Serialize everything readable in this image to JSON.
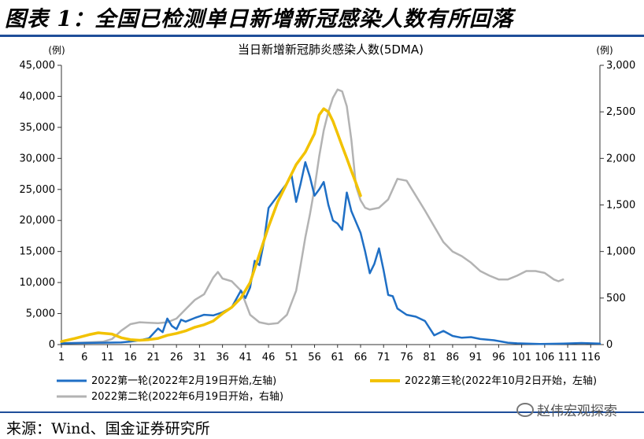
{
  "figure": {
    "title": "图表 1：全国已检测单日新增新冠感染人数有所回落",
    "source": "来源：Wind、国金证券研究所",
    "watermark": "赵伟宏观探索",
    "watermark_icon": "wechat-icon"
  },
  "chart_data": {
    "type": "line",
    "title": "当日新增新冠肺炎感染人数(5DMA)",
    "ylabel_left_unit": "(例)",
    "ylabel_right_unit": "(例)",
    "xlim": [
      1,
      118
    ],
    "x_ticks": [
      "1",
      "6",
      "11",
      "16",
      "21",
      "26",
      "31",
      "36",
      "41",
      "46",
      "51",
      "56",
      "61",
      "66",
      "71",
      "76",
      "81",
      "86",
      "91",
      "96",
      "101",
      "106",
      "111",
      "116"
    ],
    "y_left": {
      "min": 0,
      "max": 45000,
      "ticks": [
        "0",
        "5,000",
        "10,000",
        "15,000",
        "20,000",
        "25,000",
        "30,000",
        "35,000",
        "40,000",
        "45,000"
      ]
    },
    "y_right": {
      "min": 0,
      "max": 3000,
      "ticks": [
        "0",
        "500",
        "1,000",
        "1,500",
        "2,000",
        "2,500",
        "3,000"
      ]
    },
    "grid": false,
    "legend_position": "bottom",
    "series": [
      {
        "name": "2022第一轮(2022年2月19日开始,左轴)",
        "axis": "left",
        "color": "#1f6fc5",
        "points": [
          [
            1,
            200
          ],
          [
            5,
            250
          ],
          [
            10,
            300
          ],
          [
            14,
            350
          ],
          [
            16,
            500
          ],
          [
            18,
            700
          ],
          [
            20,
            1000
          ],
          [
            21,
            1800
          ],
          [
            22,
            2600
          ],
          [
            23,
            2000
          ],
          [
            24,
            4200
          ],
          [
            25,
            3000
          ],
          [
            26,
            2500
          ],
          [
            27,
            4000
          ],
          [
            28,
            3700
          ],
          [
            30,
            4300
          ],
          [
            32,
            4800
          ],
          [
            34,
            4700
          ],
          [
            36,
            5200
          ],
          [
            38,
            6000
          ],
          [
            40,
            8700
          ],
          [
            41,
            7500
          ],
          [
            42,
            9200
          ],
          [
            43,
            13500
          ],
          [
            44,
            12800
          ],
          [
            45,
            16500
          ],
          [
            46,
            22000
          ],
          [
            48,
            24000
          ],
          [
            50,
            26000
          ],
          [
            51,
            27300
          ],
          [
            52,
            23000
          ],
          [
            53,
            26000
          ],
          [
            54,
            29400
          ],
          [
            55,
            27000
          ],
          [
            56,
            24000
          ],
          [
            57,
            25000
          ],
          [
            58,
            26200
          ],
          [
            59,
            22500
          ],
          [
            60,
            20000
          ],
          [
            61,
            19500
          ],
          [
            62,
            18500
          ],
          [
            63,
            24500
          ],
          [
            64,
            21500
          ],
          [
            66,
            18000
          ],
          [
            67,
            15000
          ],
          [
            68,
            11500
          ],
          [
            69,
            13000
          ],
          [
            70,
            15500
          ],
          [
            71,
            12000
          ],
          [
            72,
            8000
          ],
          [
            73,
            7800
          ],
          [
            74,
            5800
          ],
          [
            76,
            4800
          ],
          [
            78,
            4500
          ],
          [
            80,
            3800
          ],
          [
            82,
            1500
          ],
          [
            84,
            2200
          ],
          [
            86,
            1400
          ],
          [
            88,
            1100
          ],
          [
            90,
            1200
          ],
          [
            92,
            900
          ],
          [
            95,
            700
          ],
          [
            98,
            300
          ],
          [
            100,
            200
          ],
          [
            105,
            100
          ],
          [
            110,
            150
          ],
          [
            114,
            250
          ],
          [
            118,
            150
          ]
        ]
      },
      {
        "name": "2022第二轮(2022年6月19日开始，右轴)",
        "axis": "right",
        "color": "#b3b3b3",
        "points": [
          [
            1,
            15
          ],
          [
            5,
            20
          ],
          [
            10,
            30
          ],
          [
            12,
            60
          ],
          [
            14,
            150
          ],
          [
            16,
            220
          ],
          [
            18,
            240
          ],
          [
            20,
            235
          ],
          [
            22,
            230
          ],
          [
            24,
            240
          ],
          [
            26,
            280
          ],
          [
            28,
            380
          ],
          [
            30,
            480
          ],
          [
            32,
            540
          ],
          [
            34,
            720
          ],
          [
            35,
            780
          ],
          [
            36,
            710
          ],
          [
            38,
            680
          ],
          [
            40,
            580
          ],
          [
            42,
            320
          ],
          [
            44,
            240
          ],
          [
            46,
            220
          ],
          [
            48,
            230
          ],
          [
            50,
            320
          ],
          [
            52,
            580
          ],
          [
            53,
            860
          ],
          [
            54,
            1150
          ],
          [
            55,
            1400
          ],
          [
            56,
            1680
          ],
          [
            57,
            2020
          ],
          [
            58,
            2300
          ],
          [
            59,
            2500
          ],
          [
            60,
            2650
          ],
          [
            61,
            2740
          ],
          [
            62,
            2720
          ],
          [
            63,
            2560
          ],
          [
            64,
            2200
          ],
          [
            65,
            1700
          ],
          [
            66,
            1550
          ],
          [
            67,
            1470
          ],
          [
            68,
            1450
          ],
          [
            70,
            1470
          ],
          [
            72,
            1560
          ],
          [
            74,
            1780
          ],
          [
            76,
            1760
          ],
          [
            78,
            1600
          ],
          [
            80,
            1440
          ],
          [
            82,
            1270
          ],
          [
            84,
            1100
          ],
          [
            86,
            1000
          ],
          [
            88,
            950
          ],
          [
            90,
            880
          ],
          [
            92,
            790
          ],
          [
            94,
            740
          ],
          [
            96,
            700
          ],
          [
            98,
            700
          ],
          [
            100,
            740
          ],
          [
            102,
            790
          ],
          [
            104,
            790
          ],
          [
            106,
            770
          ],
          [
            108,
            700
          ],
          [
            109,
            680
          ],
          [
            110,
            700
          ]
        ]
      },
      {
        "name": "2022第三轮(2022年10月2日开始，左轴)",
        "axis": "left",
        "color": "#f2c200",
        "points": [
          [
            1,
            500
          ],
          [
            4,
            1000
          ],
          [
            7,
            1600
          ],
          [
            9,
            1900
          ],
          [
            12,
            1700
          ],
          [
            14,
            1100
          ],
          [
            16,
            800
          ],
          [
            18,
            700
          ],
          [
            20,
            800
          ],
          [
            22,
            1000
          ],
          [
            24,
            1500
          ],
          [
            26,
            1800
          ],
          [
            28,
            2200
          ],
          [
            30,
            2800
          ],
          [
            32,
            3200
          ],
          [
            34,
            3800
          ],
          [
            36,
            5000
          ],
          [
            38,
            6000
          ],
          [
            40,
            7500
          ],
          [
            42,
            10000
          ],
          [
            44,
            14500
          ],
          [
            46,
            19000
          ],
          [
            48,
            23000
          ],
          [
            50,
            26000
          ],
          [
            52,
            29000
          ],
          [
            54,
            31000
          ],
          [
            56,
            34000
          ],
          [
            57,
            37000
          ],
          [
            58,
            38000
          ],
          [
            59,
            37500
          ],
          [
            60,
            36000
          ],
          [
            61,
            34000
          ],
          [
            62,
            32000
          ],
          [
            63,
            30000
          ],
          [
            64,
            28000
          ],
          [
            65,
            26000
          ],
          [
            66,
            24000
          ]
        ]
      }
    ]
  }
}
